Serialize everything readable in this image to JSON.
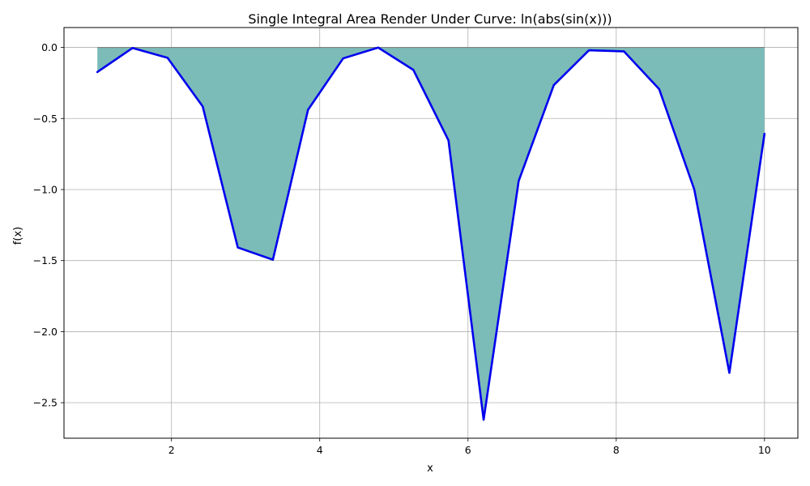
{
  "chart_data": {
    "type": "area",
    "title": "Single Integral Area Render Under Curve: ln(abs(sin(x)))",
    "xlabel": "x",
    "ylabel": "f(x)",
    "xlim": [
      0.55,
      10.45
    ],
    "ylim": [
      -2.75,
      0.14
    ],
    "grid": true,
    "legend": "none",
    "xticks": [
      2,
      4,
      6,
      8,
      10
    ],
    "yticks": [
      0.0,
      -0.5,
      -1.0,
      -1.5,
      -2.0,
      -2.5
    ],
    "xtick_labels": [
      "2",
      "4",
      "6",
      "8",
      "10"
    ],
    "ytick_labels": [
      "0.0",
      "−0.5",
      "−1.0",
      "−1.5",
      "−2.0",
      "−2.5"
    ],
    "series": [
      {
        "x": [
          1.0,
          1.474,
          1.947,
          2.421,
          2.895,
          3.368,
          3.842,
          4.316,
          4.789,
          5.263,
          5.737,
          6.211,
          6.684,
          7.158,
          7.632,
          8.105,
          8.579,
          9.053,
          9.526,
          10.0
        ],
        "y": [
          -0.173,
          -0.004,
          -0.073,
          -0.415,
          -1.408,
          -1.494,
          -0.439,
          -0.077,
          -0.001,
          -0.158,
          -0.654,
          -2.62,
          -0.94,
          -0.265,
          -0.02,
          -0.028,
          -0.293,
          -1.0,
          -2.29,
          -0.608
        ]
      }
    ],
    "colors": {
      "line": "#0000ee",
      "fill": "#7bbbb8",
      "grid": "#b0b0b0",
      "zero_line": "#808080"
    }
  }
}
